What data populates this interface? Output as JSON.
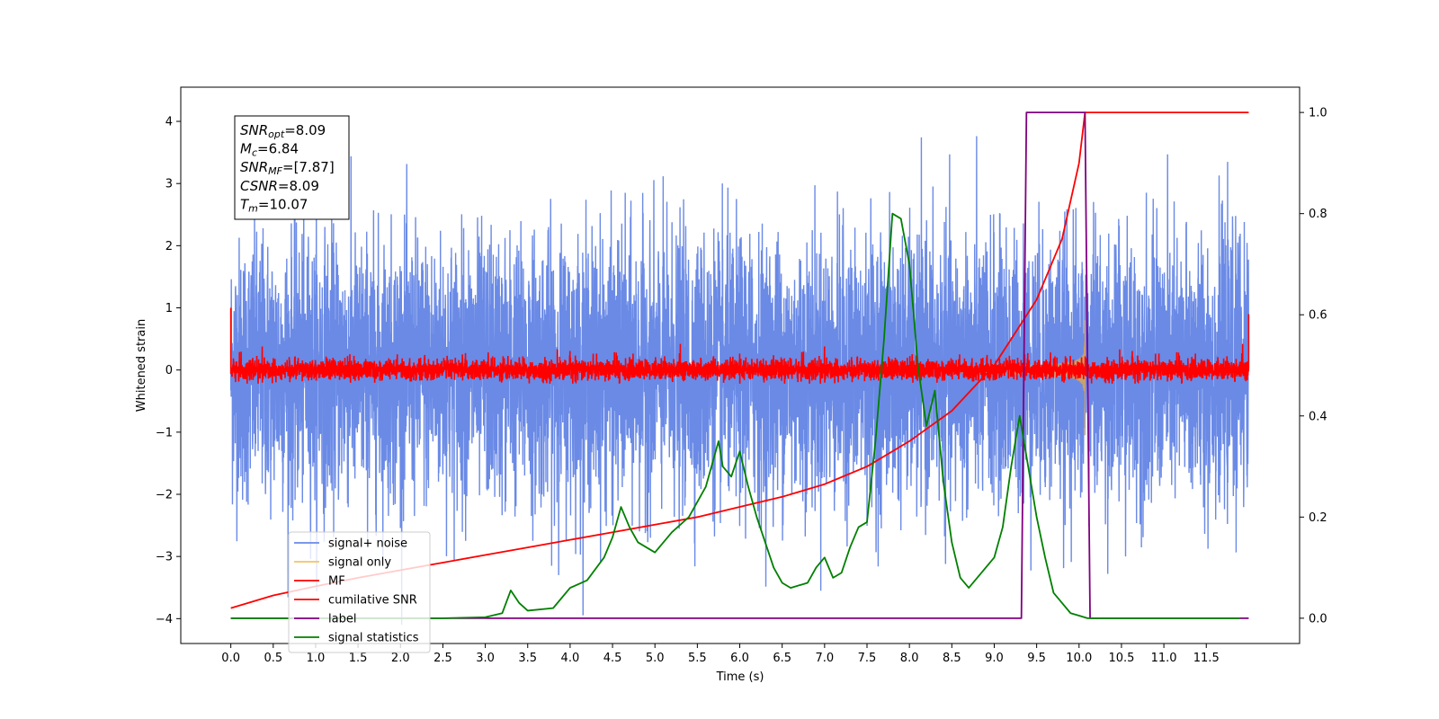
{
  "chart_data": {
    "type": "line",
    "xlabel": "Time (s)",
    "ylabel": "Whitened strain",
    "x_ticks": [
      "0.0",
      "0.5",
      "1.0",
      "1.5",
      "2.0",
      "2.5",
      "3.0",
      "3.5",
      "4.0",
      "4.5",
      "5.0",
      "5.5",
      "6.0",
      "6.5",
      "7.0",
      "7.5",
      "8.0",
      "8.5",
      "9.0",
      "9.5",
      "10.0",
      "10.5",
      "11.0",
      "11.5"
    ],
    "x_tick_values": [
      0,
      0.5,
      1,
      1.5,
      2,
      2.5,
      3,
      3.5,
      4,
      4.5,
      5,
      5.5,
      6,
      6.5,
      7,
      7.5,
      8,
      8.5,
      9,
      9.5,
      10,
      10.5,
      11,
      11.5
    ],
    "xlim": [
      -0.59,
      12.6
    ],
    "ylim_left": [
      -4.4,
      4.55
    ],
    "y_ticks_left": [
      -4,
      -3,
      -2,
      -1,
      0,
      1,
      2,
      3,
      4
    ],
    "y_tick_labels_left": [
      "−4",
      "−3",
      "−2",
      "−1",
      "0",
      "1",
      "2",
      "3",
      "4"
    ],
    "ylim_right": [
      -0.05,
      1.05
    ],
    "y_ticks_right": [
      0.0,
      0.2,
      0.4,
      0.6,
      0.8,
      1.0
    ],
    "y_tick_labels_right": [
      "0.0",
      "0.2",
      "0.4",
      "0.6",
      "0.8",
      "1.0"
    ],
    "grid": false,
    "legend_position": "lower-left",
    "series": [
      {
        "name": "signal+ noise",
        "axis": "left",
        "color": "#6a8ae6",
        "style": "noise band, approx. ±2.5 amplitude with spikes to ±4",
        "x_range": [
          0.0,
          12.0
        ]
      },
      {
        "name": "signal only",
        "axis": "left",
        "color": "#f5c264",
        "style": "chirp rising to approx. ±0.75 at 10.07 s",
        "x_range": [
          8.5,
          10.07
        ]
      },
      {
        "name": "MF",
        "axis": "left",
        "color": "#ff0000",
        "style": "noise band approx. ±0.15 with spikes to ±0.4",
        "x_range": [
          0.0,
          12.0
        ]
      },
      {
        "name": "cumilative SNR",
        "axis": "right",
        "color": "#ff0000",
        "x": [
          0.0,
          0.5,
          1.0,
          1.5,
          2.0,
          2.5,
          3.0,
          3.5,
          4.0,
          4.5,
          5.0,
          5.5,
          6.0,
          6.5,
          7.0,
          7.5,
          8.0,
          8.5,
          9.0,
          9.5,
          9.8,
          10.0,
          10.07,
          12.0
        ],
        "y": [
          0.02,
          0.045,
          0.063,
          0.08,
          0.095,
          0.11,
          0.125,
          0.14,
          0.155,
          0.17,
          0.185,
          0.2,
          0.22,
          0.24,
          0.265,
          0.3,
          0.35,
          0.41,
          0.5,
          0.63,
          0.75,
          0.9,
          1.0,
          1.0
        ]
      },
      {
        "name": "label",
        "axis": "right",
        "color": "#800080",
        "x": [
          0.0,
          9.32,
          9.38,
          10.07,
          10.13,
          12.0
        ],
        "y": [
          0.0,
          0.0,
          1.0,
          1.0,
          0.0,
          0.0
        ]
      },
      {
        "name": "signal statistics",
        "axis": "right",
        "color": "#008000",
        "x": [
          0.0,
          1.0,
          2.0,
          2.5,
          3.0,
          3.2,
          3.3,
          3.4,
          3.5,
          3.8,
          4.0,
          4.2,
          4.4,
          4.5,
          4.6,
          4.7,
          4.8,
          5.0,
          5.2,
          5.4,
          5.6,
          5.75,
          5.8,
          5.9,
          6.0,
          6.1,
          6.2,
          6.4,
          6.5,
          6.6,
          6.8,
          6.9,
          7.0,
          7.1,
          7.2,
          7.3,
          7.4,
          7.5,
          7.6,
          7.7,
          7.8,
          7.9,
          8.0,
          8.1,
          8.2,
          8.3,
          8.4,
          8.5,
          8.6,
          8.7,
          8.8,
          8.9,
          9.0,
          9.1,
          9.2,
          9.3,
          9.4,
          9.5,
          9.6,
          9.7,
          9.8,
          9.9,
          10.0,
          10.1,
          10.5,
          11.0,
          11.5,
          11.9
        ],
        "y": [
          0.0,
          0.0,
          0.0,
          0.0,
          0.002,
          0.01,
          0.055,
          0.03,
          0.015,
          0.02,
          0.06,
          0.075,
          0.12,
          0.16,
          0.22,
          0.18,
          0.15,
          0.13,
          0.17,
          0.2,
          0.26,
          0.35,
          0.3,
          0.28,
          0.33,
          0.26,
          0.2,
          0.1,
          0.07,
          0.06,
          0.07,
          0.1,
          0.12,
          0.08,
          0.09,
          0.14,
          0.18,
          0.19,
          0.35,
          0.55,
          0.8,
          0.79,
          0.7,
          0.5,
          0.38,
          0.45,
          0.27,
          0.15,
          0.08,
          0.06,
          0.08,
          0.1,
          0.12,
          0.18,
          0.3,
          0.4,
          0.3,
          0.2,
          0.12,
          0.05,
          0.03,
          0.01,
          0.005,
          0.0,
          0.0,
          0.0,
          0.0,
          0.0
        ]
      }
    ],
    "annotation": [
      {
        "name": "SNR",
        "sub": "opt",
        "value": "=8.09"
      },
      {
        "name": "M",
        "sub": "c",
        "value": "=6.84"
      },
      {
        "name": "SNR",
        "sub": "MF",
        "value": "=[7.87]"
      },
      {
        "name": "CSNR",
        "sub": "",
        "value": "=8.09"
      },
      {
        "name": "T",
        "sub": "m",
        "value": "=10.07"
      }
    ]
  }
}
